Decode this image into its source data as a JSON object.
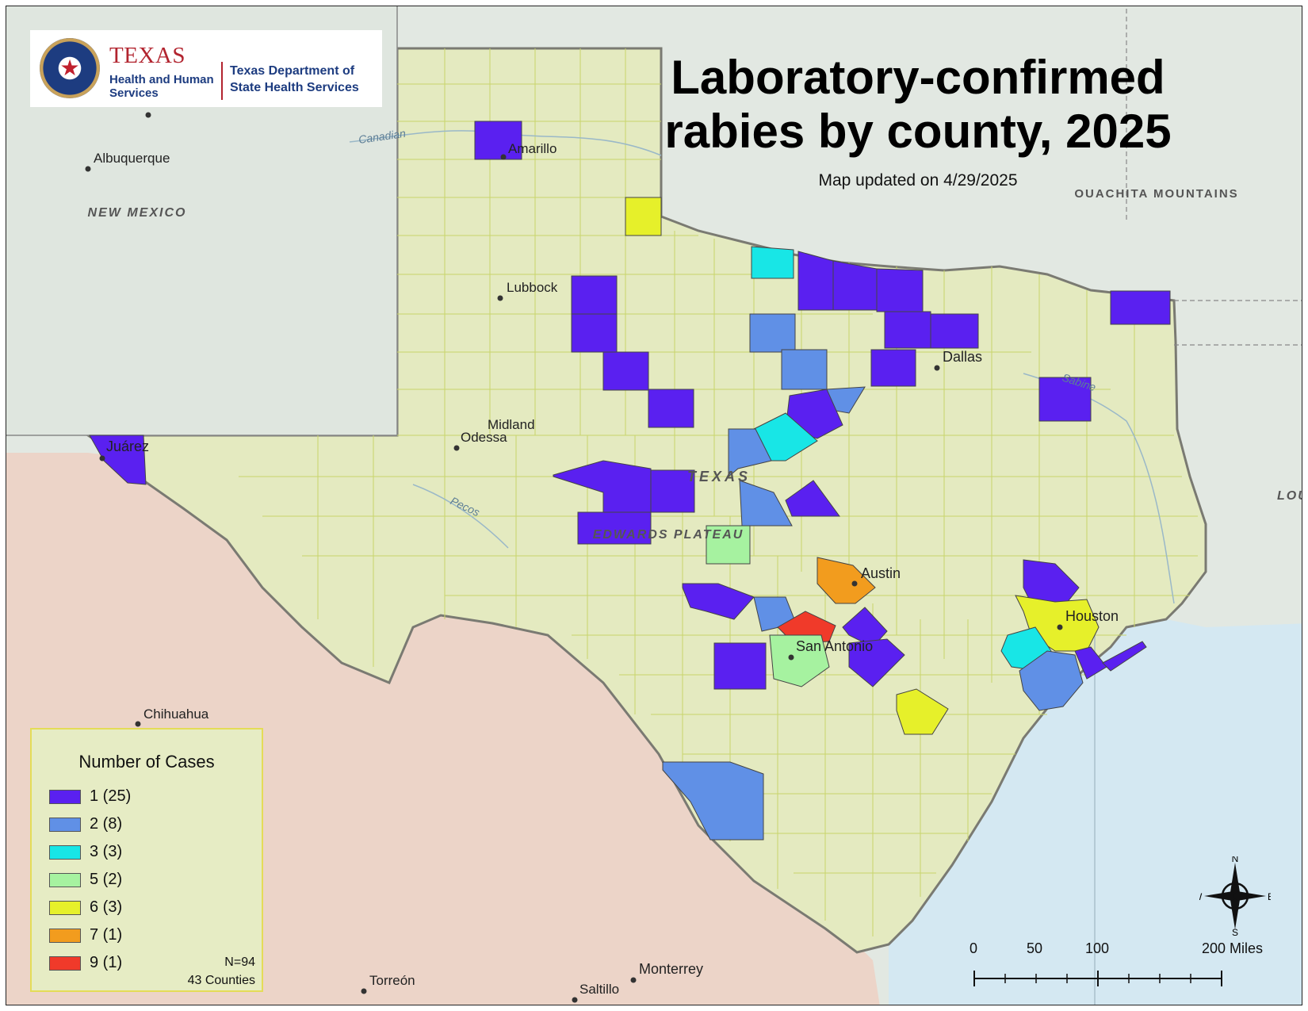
{
  "title": "Laboratory-confirmed rabies by county, 2025",
  "subtitle": "Map updated on 4/29/2025",
  "logo": {
    "texas": "TEXAS",
    "hhs": "Health and Human Services",
    "dshs": "Texas Department of State Health Services"
  },
  "cities": [
    "Amarillo",
    "Lubbock",
    "Midland",
    "Odessa",
    "Dallas",
    "Austin",
    "San Antonio",
    "Houston",
    "Juárez",
    "Albuquerque",
    "Chihuahua",
    "Torreón",
    "Saltillo",
    "Monterrey"
  ],
  "region_labels": [
    "NEW MEXICO",
    "TEXAS",
    "EDWARDS PLATEAU",
    "OUACHITA MOUNTAINS",
    "LOUISI"
  ],
  "river_labels": [
    "Canadian",
    "Pecos",
    "Sabine"
  ],
  "legend": {
    "title": "Number of Cases",
    "items": [
      {
        "label": "1 (25)",
        "color": "#5a20f0"
      },
      {
        "label": "2 (8)",
        "color": "#6090e6"
      },
      {
        "label": "3 (3)",
        "color": "#18e6e6"
      },
      {
        "label": "5 (2)",
        "color": "#a6f2a0"
      },
      {
        "label": "6 (3)",
        "color": "#e6f02a"
      },
      {
        "label": "7 (1)",
        "color": "#f29c1e"
      },
      {
        "label": "9 (1)",
        "color": "#f03a2a"
      }
    ],
    "n": "N=94",
    "counties": "43 Counties"
  },
  "scale": {
    "ticks": [
      "0",
      "50",
      "100",
      "200 Miles"
    ]
  },
  "compass": {
    "n": "N",
    "s": "S",
    "e": "E",
    "w": "W"
  },
  "colors": {
    "texas_fill": "#e4eac0",
    "mexico_fill": "#ecd4c8",
    "us_fill": "#e2e8e2",
    "water": "#d4e8f2"
  }
}
